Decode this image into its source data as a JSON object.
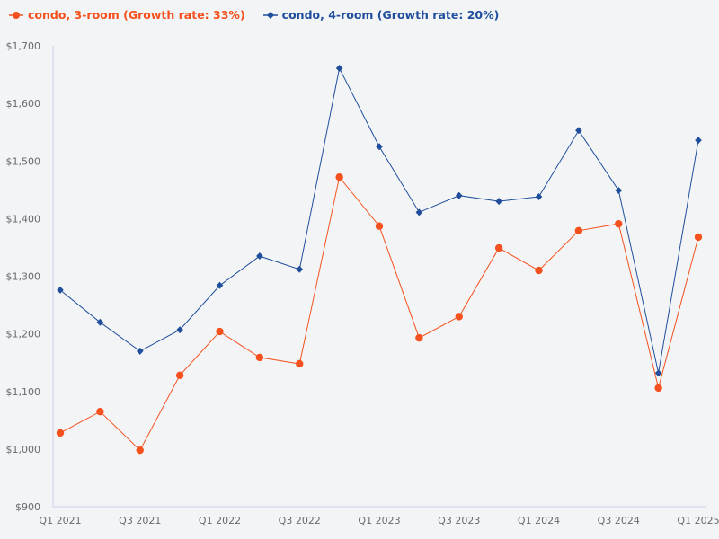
{
  "legend": [
    {
      "label": "condo, 3-room (Growth rate: 33%)",
      "color": "#f4511e",
      "marker": "circle"
    },
    {
      "label": "condo, 4-room (Growth rate: 20%)",
      "color": "#1f4e9c",
      "marker": "diamond"
    }
  ],
  "chart_data": {
    "type": "line",
    "title": "",
    "xlabel": "",
    "ylabel": "",
    "ylim": [
      900,
      1700
    ],
    "y_ticks": [
      "$900",
      "$1,000",
      "$1,100",
      "$1,200",
      "$1,300",
      "$1,400",
      "$1,500",
      "$1,600",
      "$1,700"
    ],
    "x_tick_labels": [
      "Q1 2021",
      "Q3 2021",
      "Q1 2022",
      "Q3 2022",
      "Q1 2023",
      "Q3 2023",
      "Q1 2024",
      "Q3 2024",
      "Q1 2025"
    ],
    "categories": [
      "Q1 2021",
      "Q2 2021",
      "Q3 2021",
      "Q4 2021",
      "Q1 2022",
      "Q2 2022",
      "Q3 2022",
      "Q4 2022",
      "Q1 2023",
      "Q2 2023",
      "Q3 2023",
      "Q4 2023",
      "Q1 2024",
      "Q2 2024",
      "Q3 2024",
      "Q4 2024",
      "Q1 2025"
    ],
    "grid": false,
    "legend_position": "top-left",
    "series": [
      {
        "name": "condo, 3-room (Growth rate: 33%)",
        "color": "#f4511e",
        "marker": "circle",
        "values": [
          1028,
          1065,
          998,
          1128,
          1204,
          1159,
          1148,
          1472,
          1387,
          1193,
          1230,
          1349,
          1310,
          1379,
          1391,
          1106,
          1368
        ]
      },
      {
        "name": "condo, 4-room (Growth rate: 20%)",
        "color": "#1f4e9c",
        "marker": "diamond",
        "values": [
          1276,
          1220,
          1170,
          1207,
          1284,
          1335,
          1312,
          1661,
          1525,
          1411,
          1440,
          1430,
          1438,
          1553,
          1449,
          1132,
          1536
        ]
      }
    ]
  }
}
